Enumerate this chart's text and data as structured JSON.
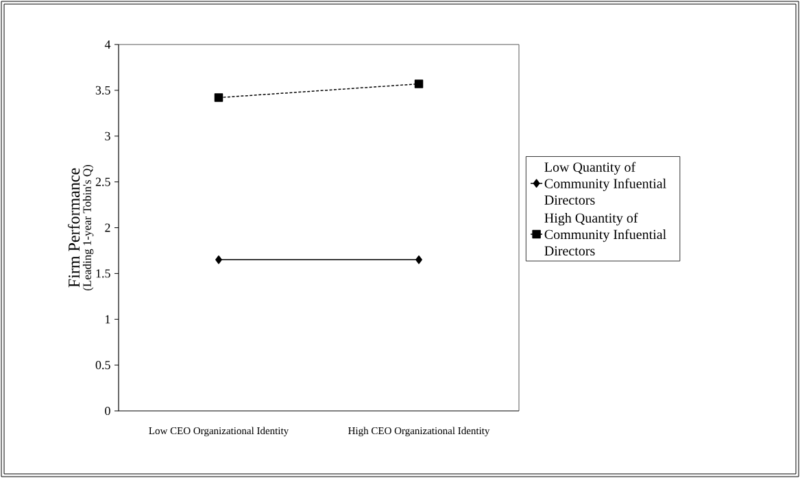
{
  "chart_data": {
    "type": "line",
    "ylabel": "Firm Performance",
    "annotations": [
      "(Leading 1-year Tobin's Q)"
    ],
    "categories": [
      "Low CEO Organizational Identity",
      "High CEO Organizational Identity"
    ],
    "series": [
      {
        "name": "Low Quantity of Community Infuential Directors",
        "color": "#000000",
        "values": [
          1.65,
          1.65
        ],
        "marker": "diamond",
        "line_style": "solid"
      },
      {
        "name": "High Quantity of Community Infuential Directors",
        "color": "#000000",
        "values": [
          3.42,
          3.57
        ],
        "marker": "square",
        "line_style": "dashed"
      }
    ],
    "ylim": [
      0,
      4
    ],
    "yticks": [
      0,
      0.5,
      1,
      1.5,
      2,
      2.5,
      3,
      3.5,
      4
    ],
    "grid": false,
    "legend": "right"
  }
}
